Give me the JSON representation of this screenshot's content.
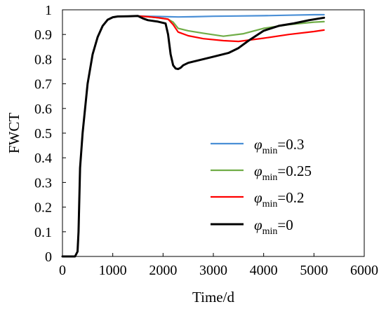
{
  "chart_data": {
    "type": "line",
    "title": "",
    "xlabel": "Time/d",
    "ylabel": "FWCT",
    "xlim": [
      0,
      6000
    ],
    "ylim": [
      0,
      1
    ],
    "xticks": [
      0,
      1000,
      2000,
      3000,
      4000,
      5000,
      6000
    ],
    "yticks": [
      0,
      0.1,
      0.2,
      0.3,
      0.4,
      0.5,
      0.6,
      0.7,
      0.8,
      0.9,
      1
    ],
    "legend_position": "lower-right",
    "series": [
      {
        "name": "φmin=0.3",
        "color": "#4a8fd6",
        "x": [
          0,
          250,
          300,
          320,
          350,
          400,
          500,
          600,
          700,
          800,
          900,
          1000,
          1100,
          1300,
          1500,
          1700,
          1900,
          2100,
          2300,
          2600,
          3000,
          3500,
          4000,
          4500,
          5000,
          5200
        ],
        "y": [
          0,
          0,
          0.02,
          0.1,
          0.36,
          0.5,
          0.7,
          0.82,
          0.89,
          0.935,
          0.96,
          0.97,
          0.973,
          0.974,
          0.975,
          0.974,
          0.973,
          0.972,
          0.971,
          0.972,
          0.974,
          0.975,
          0.976,
          0.978,
          0.98,
          0.98
        ]
      },
      {
        "name": "φmin=0.25",
        "color": "#70ad47",
        "x": [
          0,
          250,
          300,
          320,
          350,
          400,
          500,
          600,
          700,
          800,
          900,
          1000,
          1100,
          1300,
          1500,
          1700,
          1900,
          2100,
          2200,
          2300,
          2500,
          2800,
          3200,
          3600,
          4000,
          4500,
          5000,
          5200
        ],
        "y": [
          0,
          0,
          0.02,
          0.1,
          0.36,
          0.5,
          0.7,
          0.82,
          0.89,
          0.935,
          0.96,
          0.97,
          0.973,
          0.974,
          0.975,
          0.972,
          0.968,
          0.962,
          0.95,
          0.925,
          0.915,
          0.905,
          0.893,
          0.903,
          0.925,
          0.94,
          0.95,
          0.952
        ]
      },
      {
        "name": "φmin=0.2",
        "color": "#ff0000",
        "x": [
          0,
          250,
          300,
          320,
          350,
          400,
          500,
          600,
          700,
          800,
          900,
          1000,
          1100,
          1300,
          1500,
          1700,
          1900,
          2100,
          2200,
          2300,
          2500,
          2800,
          3200,
          3500,
          4000,
          4500,
          5000,
          5200
        ],
        "y": [
          0,
          0,
          0.02,
          0.1,
          0.36,
          0.5,
          0.7,
          0.82,
          0.89,
          0.935,
          0.96,
          0.97,
          0.973,
          0.974,
          0.975,
          0.972,
          0.968,
          0.962,
          0.94,
          0.91,
          0.895,
          0.883,
          0.875,
          0.872,
          0.885,
          0.9,
          0.912,
          0.918
        ]
      },
      {
        "name": "φmin=0",
        "color": "#000000",
        "x": [
          0,
          250,
          300,
          320,
          350,
          400,
          500,
          600,
          700,
          800,
          900,
          1000,
          1100,
          1300,
          1500,
          1600,
          1700,
          1900,
          2050,
          2100,
          2150,
          2200,
          2250,
          2300,
          2350,
          2400,
          2500,
          2600,
          2800,
          3000,
          3300,
          3500,
          3700,
          4000,
          4300,
          4600,
          4900,
          5200
        ],
        "y": [
          0,
          0,
          0.02,
          0.1,
          0.36,
          0.5,
          0.7,
          0.82,
          0.89,
          0.935,
          0.96,
          0.97,
          0.973,
          0.974,
          0.975,
          0.965,
          0.958,
          0.952,
          0.945,
          0.9,
          0.82,
          0.775,
          0.762,
          0.76,
          0.765,
          0.775,
          0.785,
          0.79,
          0.8,
          0.81,
          0.825,
          0.845,
          0.875,
          0.915,
          0.935,
          0.945,
          0.958,
          0.968
        ]
      }
    ]
  }
}
